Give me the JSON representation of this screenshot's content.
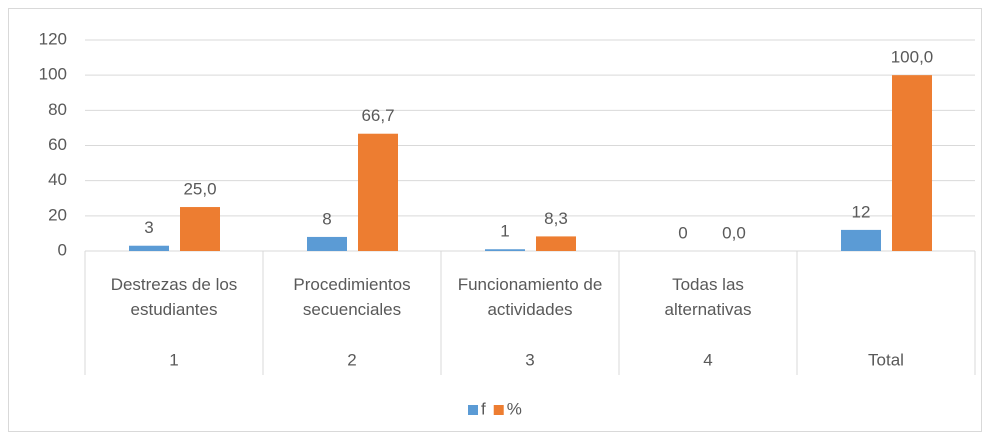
{
  "chart_data": {
    "type": "bar",
    "categories": [
      "1",
      "2",
      "3",
      "4",
      "Total"
    ],
    "subcategories": [
      "Destrezas de los estudiantes",
      "Procedimientos secuenciales",
      "Funcionamiento de actividades",
      "Todas las alternativas",
      null
    ],
    "series": [
      {
        "name": "f",
        "color": "#5b9bd5",
        "values": [
          3,
          8,
          1,
          0,
          12
        ]
      },
      {
        "name": "%",
        "color": "#ed7d31",
        "values": [
          25,
          66.7,
          8.3,
          0,
          100
        ],
        "value_labels": [
          "25,0",
          "66,7",
          "8,3",
          "0,0",
          "100,0"
        ]
      }
    ],
    "ylim": [
      0,
      120
    ],
    "yticks": [
      0,
      20,
      40,
      60,
      80,
      100,
      120
    ],
    "grid": true,
    "legend": "bottom"
  }
}
